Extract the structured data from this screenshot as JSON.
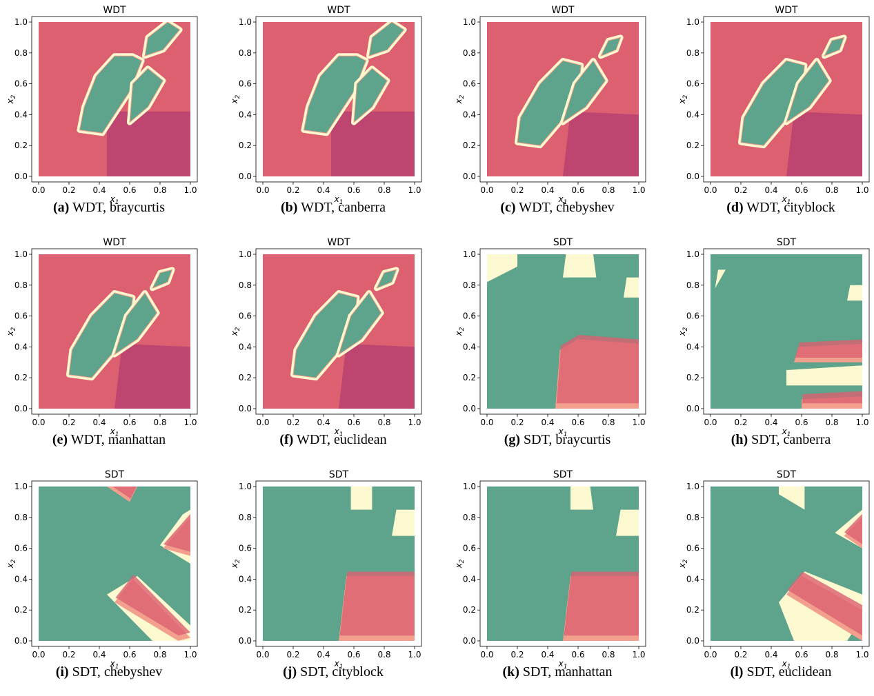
{
  "figure": {
    "chart_data": [
      {
        "type": "scatter",
        "title": "WDT",
        "caption_letter": "(a)",
        "caption_text": "WDT, braycurtis",
        "xlabel": "x1",
        "ylabel": "x2",
        "xlim": [
          0,
          1
        ],
        "ylim": [
          0,
          1
        ],
        "xticks": [
          "0.0",
          "0.2",
          "0.4",
          "0.6",
          "0.8",
          "1.0"
        ],
        "yticks": [
          "0.0",
          "0.2",
          "0.4",
          "0.6",
          "0.8",
          "1.0"
        ],
        "grid": false,
        "legend": "none",
        "colormap": "Spectral (red / cream / teal)",
        "regions": "teal regions along the diagonal with a second teal blob near (0.8,0.85); red elsewhere"
      },
      {
        "type": "scatter",
        "title": "WDT",
        "caption_letter": "(b)",
        "caption_text": "WDT, canberra",
        "xlabel": "x1",
        "ylabel": "x2",
        "xlim": [
          0,
          1
        ],
        "ylim": [
          0,
          1
        ],
        "xticks": [
          "0.0",
          "0.2",
          "0.4",
          "0.6",
          "0.8",
          "1.0"
        ],
        "yticks": [
          "0.0",
          "0.2",
          "0.4",
          "0.6",
          "0.8",
          "1.0"
        ],
        "grid": false,
        "legend": "none",
        "colormap": "Spectral (red / cream / teal)",
        "regions": "teal regions along the diagonal; red elsewhere"
      },
      {
        "type": "scatter",
        "title": "WDT",
        "caption_letter": "(c)",
        "caption_text": "WDT, chebyshev",
        "xlabel": "x1",
        "ylabel": "x2",
        "xlim": [
          0,
          1
        ],
        "ylim": [
          0,
          1
        ],
        "xticks": [
          "0.0",
          "0.2",
          "0.4",
          "0.6",
          "0.8",
          "1.0"
        ],
        "yticks": [
          "0.0",
          "0.2",
          "0.4",
          "0.6",
          "0.8",
          "1.0"
        ],
        "grid": false,
        "legend": "none",
        "colormap": "Spectral (red / cream / teal)",
        "regions": "teal regions along the diagonal; red elsewhere"
      },
      {
        "type": "scatter",
        "title": "WDT",
        "caption_letter": "(d)",
        "caption_text": "WDT, cityblock",
        "xlabel": "x1",
        "ylabel": "x2",
        "xlim": [
          0,
          1
        ],
        "ylim": [
          0,
          1
        ],
        "xticks": [
          "0.0",
          "0.2",
          "0.4",
          "0.6",
          "0.8",
          "1.0"
        ],
        "yticks": [
          "0.0",
          "0.2",
          "0.4",
          "0.6",
          "0.8",
          "1.0"
        ],
        "grid": false,
        "legend": "none",
        "colormap": "Spectral (red / cream / teal)",
        "regions": "teal regions along the diagonal; red elsewhere"
      },
      {
        "type": "scatter",
        "title": "WDT",
        "caption_letter": "(e)",
        "caption_text": "WDT, manhattan",
        "xlabel": "x1",
        "ylabel": "x2",
        "xlim": [
          0,
          1
        ],
        "ylim": [
          0,
          1
        ],
        "xticks": [
          "0.0",
          "0.2",
          "0.4",
          "0.6",
          "0.8",
          "1.0"
        ],
        "yticks": [
          "0.0",
          "0.2",
          "0.4",
          "0.6",
          "0.8",
          "1.0"
        ],
        "grid": false,
        "legend": "none",
        "colormap": "Spectral (red / cream / teal)",
        "regions": "teal regions along the diagonal; red elsewhere"
      },
      {
        "type": "scatter",
        "title": "WDT",
        "caption_letter": "(f)",
        "caption_text": "WDT, euclidean",
        "xlabel": "x1",
        "ylabel": "x2",
        "xlim": [
          0,
          1
        ],
        "ylim": [
          0,
          1
        ],
        "xticks": [
          "0.0",
          "0.2",
          "0.4",
          "0.6",
          "0.8",
          "1.0"
        ],
        "yticks": [
          "0.0",
          "0.2",
          "0.4",
          "0.6",
          "0.8",
          "1.0"
        ],
        "grid": false,
        "legend": "none",
        "colormap": "Spectral (red / cream / teal)",
        "regions": "teal regions along the diagonal; red elsewhere"
      },
      {
        "type": "scatter",
        "title": "SDT",
        "caption_letter": "(g)",
        "caption_text": "SDT, braycurtis",
        "xlabel": "x1",
        "ylabel": "x2",
        "xlim": [
          0,
          1
        ],
        "ylim": [
          0,
          1
        ],
        "xticks": [
          "0.0",
          "0.2",
          "0.4",
          "0.6",
          "0.8",
          "1.0"
        ],
        "yticks": [
          "0.0",
          "0.2",
          "0.4",
          "0.6",
          "0.8",
          "1.0"
        ],
        "grid": false,
        "legend": "none",
        "colormap": "Spectral (red / cream / teal)",
        "regions": "mostly teal; red block bottom-right from x1≈0.45, x2<0.42"
      },
      {
        "type": "scatter",
        "title": "SDT",
        "caption_letter": "(h)",
        "caption_text": "SDT, canberra",
        "xlabel": "x1",
        "ylabel": "x2",
        "xlim": [
          0,
          1
        ],
        "ylim": [
          0,
          1
        ],
        "xticks": [
          "0.0",
          "0.2",
          "0.4",
          "0.6",
          "0.8",
          "1.0"
        ],
        "yticks": [
          "0.0",
          "0.2",
          "0.4",
          "0.6",
          "0.8",
          "1.0"
        ],
        "grid": false,
        "legend": "none",
        "colormap": "Spectral (red / cream / teal)",
        "regions": "mostly teal; red band x1>0.55, x2≈0.3–0.4"
      },
      {
        "type": "scatter",
        "title": "SDT",
        "caption_letter": "(i)",
        "caption_text": "SDT, chebyshev",
        "xlabel": "x1",
        "ylabel": "x2",
        "xlim": [
          0,
          1
        ],
        "ylim": [
          0,
          1
        ],
        "xticks": [
          "0.0",
          "0.2",
          "0.4",
          "0.6",
          "0.8",
          "1.0"
        ],
        "yticks": [
          "0.0",
          "0.2",
          "0.4",
          "0.6",
          "0.8",
          "1.0"
        ],
        "grid": false,
        "legend": "none",
        "colormap": "Spectral (red / cream / teal)",
        "regions": "mostly teal; diagonal red bands"
      },
      {
        "type": "scatter",
        "title": "SDT",
        "caption_letter": "(j)",
        "caption_text": "SDT, cityblock",
        "xlabel": "x1",
        "ylabel": "x2",
        "xlim": [
          0,
          1
        ],
        "ylim": [
          0,
          1
        ],
        "xticks": [
          "0.0",
          "0.2",
          "0.4",
          "0.6",
          "0.8",
          "1.0"
        ],
        "yticks": [
          "0.0",
          "0.2",
          "0.4",
          "0.6",
          "0.8",
          "1.0"
        ],
        "grid": false,
        "legend": "none",
        "colormap": "Spectral (red / cream / teal)",
        "regions": "mostly teal; red block x1>0.5, x2<0.42"
      },
      {
        "type": "scatter",
        "title": "SDT",
        "caption_letter": "(k)",
        "caption_text": "SDT, manhattan",
        "xlabel": "x1",
        "ylabel": "x2",
        "xlim": [
          0,
          1
        ],
        "ylim": [
          0,
          1
        ],
        "xticks": [
          "0.0",
          "0.2",
          "0.4",
          "0.6",
          "0.8",
          "1.0"
        ],
        "yticks": [
          "0.0",
          "0.2",
          "0.4",
          "0.6",
          "0.8",
          "1.0"
        ],
        "grid": false,
        "legend": "none",
        "colormap": "Spectral (red / cream / teal)",
        "regions": "mostly teal; red block x1>0.5, x2<0.42"
      },
      {
        "type": "scatter",
        "title": "SDT",
        "caption_letter": "(l)",
        "caption_text": "SDT, euclidean",
        "xlabel": "x1",
        "ylabel": "x2",
        "xlim": [
          0,
          1
        ],
        "ylim": [
          0,
          1
        ],
        "xticks": [
          "0.0",
          "0.2",
          "0.4",
          "0.6",
          "0.8",
          "1.0"
        ],
        "yticks": [
          "0.0",
          "0.2",
          "0.4",
          "0.6",
          "0.8",
          "1.0"
        ],
        "grid": false,
        "legend": "none",
        "colormap": "Spectral (red / cream / teal)",
        "regions": "mostly teal; red triangle bottom-right from x1≈0.5"
      }
    ],
    "colors": {
      "red": "#d43d51",
      "darkred": "#a3124f",
      "salmon": "#f08a74",
      "cream": "#fbf6c4",
      "teal": "#3a8f73",
      "axis": "#000000"
    }
  }
}
